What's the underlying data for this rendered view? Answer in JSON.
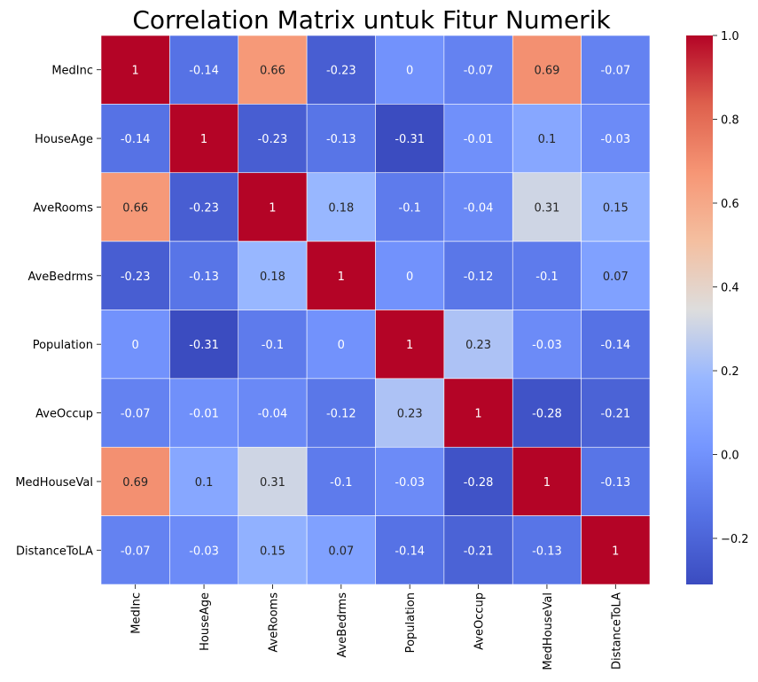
{
  "chart_data": {
    "type": "heatmap",
    "title": "Correlation Matrix untuk Fitur Numerik",
    "colormap": "coolwarm",
    "vmin": -0.31,
    "vmax": 1.0,
    "row_labels": [
      "MedInc",
      "HouseAge",
      "AveRooms",
      "AveBedrms",
      "Population",
      "AveOccup",
      "MedHouseVal",
      "DistanceToLA"
    ],
    "col_labels": [
      "MedInc",
      "HouseAge",
      "AveRooms",
      "AveBedrms",
      "Population",
      "AveOccup",
      "MedHouseVal",
      "DistanceToLA"
    ],
    "values": [
      [
        1,
        -0.14,
        0.66,
        -0.23,
        0,
        -0.07,
        0.69,
        -0.07
      ],
      [
        -0.14,
        1,
        -0.23,
        -0.13,
        -0.31,
        -0.01,
        0.1,
        -0.03
      ],
      [
        0.66,
        -0.23,
        1,
        0.18,
        -0.1,
        -0.04,
        0.31,
        0.15
      ],
      [
        -0.23,
        -0.13,
        0.18,
        1,
        0,
        -0.12,
        -0.1,
        0.07
      ],
      [
        0,
        -0.31,
        -0.1,
        0,
        1,
        0.23,
        -0.03,
        -0.14
      ],
      [
        -0.07,
        -0.01,
        -0.04,
        -0.12,
        0.23,
        1,
        -0.28,
        -0.21
      ],
      [
        0.69,
        0.1,
        0.31,
        -0.1,
        -0.03,
        -0.28,
        1,
        -0.13
      ],
      [
        -0.07,
        -0.03,
        0.15,
        0.07,
        -0.14,
        -0.21,
        -0.13,
        1
      ]
    ],
    "colorbar_ticks": [
      1.0,
      0.8,
      0.6,
      0.4,
      0.2,
      0.0,
      -0.2
    ],
    "colorbar_tick_labels": [
      "1.0",
      "0.8",
      "0.6",
      "0.4",
      "0.2",
      "0.0",
      "−0.2"
    ],
    "annotations": true,
    "legend": "colorbar-right"
  }
}
